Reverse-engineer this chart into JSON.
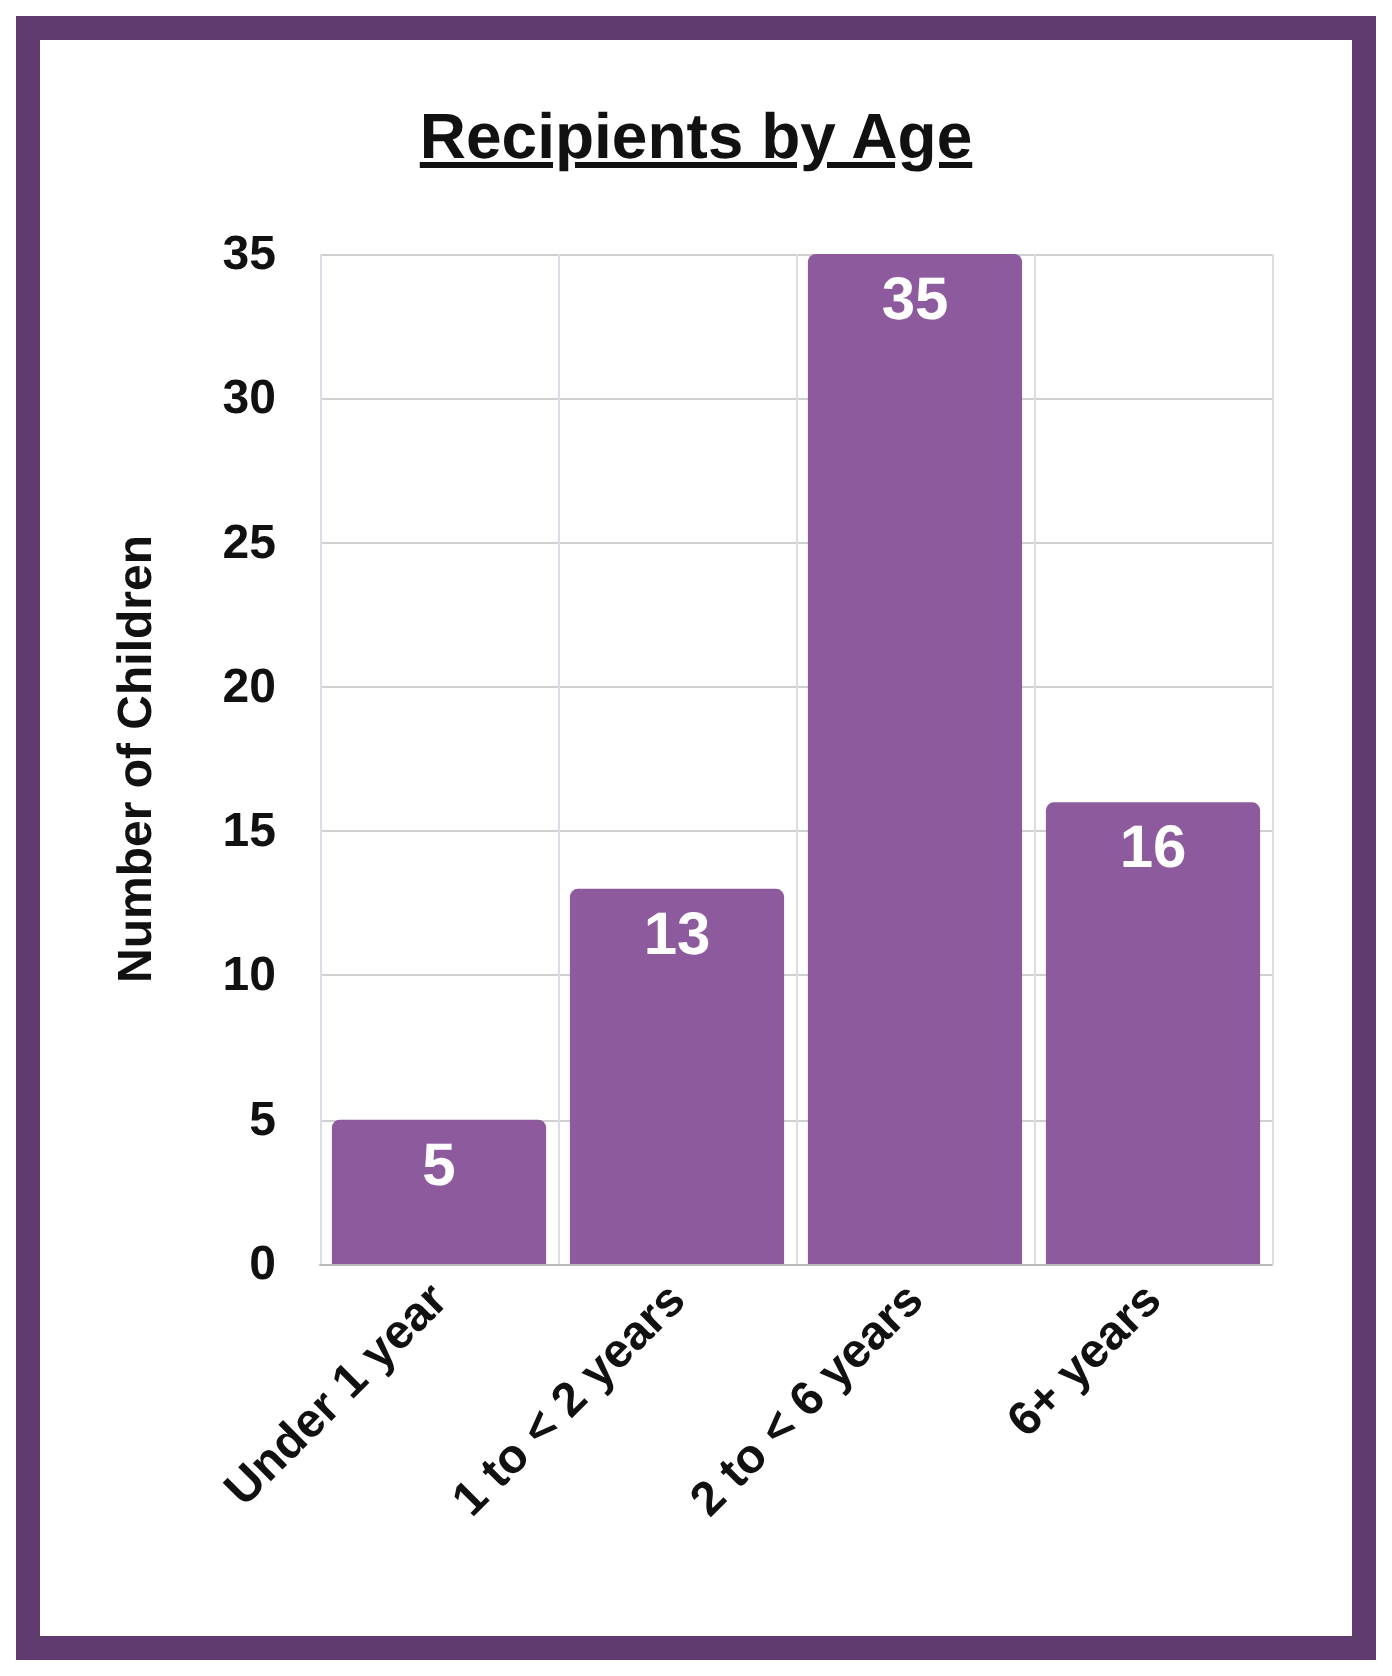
{
  "chart_data": {
    "type": "bar",
    "title": "Recipients by Age",
    "ylabel": "Number of Children",
    "categories": [
      "Under 1 year",
      "1 to < 2 years",
      "2 to < 6 years",
      "6+ years"
    ],
    "values": [
      5,
      13,
      35,
      16
    ],
    "color": "#8e5a9e",
    "ylim": [
      0,
      35
    ],
    "yticks": [
      0,
      5,
      10,
      15,
      20,
      25,
      30,
      35
    ],
    "grid": true,
    "data_labels": true
  }
}
